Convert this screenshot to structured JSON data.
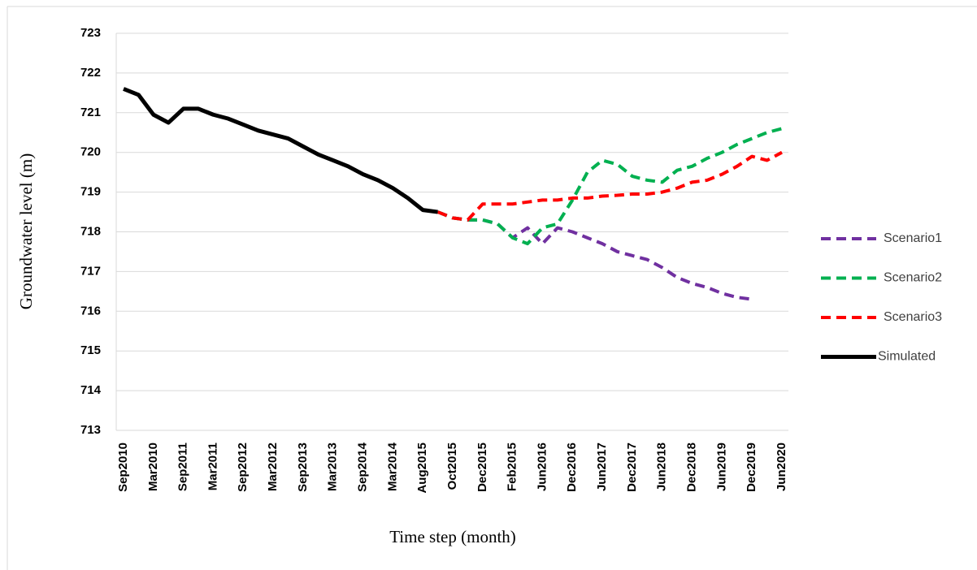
{
  "chart_data": {
    "type": "line",
    "x_label": "Time step (month)",
    "y_label": "Groundwater level (m)",
    "categories": [
      "Sep2010",
      null,
      "Mar2010",
      null,
      "Sep2011",
      null,
      "Mar2011",
      null,
      "Sep2012",
      null,
      "Mar2012",
      null,
      "Sep2013",
      null,
      "Mar2013",
      null,
      "Sep2014",
      null,
      "Mar2014",
      null,
      "Aug2015",
      null,
      "Oct2015",
      null,
      "Dec2015",
      null,
      "Feb2015",
      null,
      "Jun2016",
      null,
      "Dec2016",
      null,
      "Jun2017",
      null,
      "Dec2017",
      null,
      "Jun2018",
      null,
      "Dec2018",
      null,
      "Jun2019",
      null,
      "Dec2019",
      null,
      "Jun2020"
    ],
    "ylim": [
      713,
      723
    ],
    "yticks": [
      713,
      714,
      715,
      716,
      717,
      718,
      719,
      720,
      721,
      722,
      723
    ],
    "grid": true,
    "legend": "right",
    "series": [
      {
        "name": "Scenario1",
        "color": "#7030a0",
        "dashed": true,
        "values": [
          null,
          null,
          null,
          null,
          null,
          null,
          null,
          null,
          null,
          null,
          null,
          null,
          null,
          null,
          null,
          null,
          null,
          null,
          null,
          null,
          null,
          718.5,
          718.35,
          718.3,
          718.3,
          718.2,
          717.85,
          718.1,
          717.7,
          718.1,
          718.0,
          717.85,
          717.7,
          717.5,
          717.4,
          717.3,
          717.1,
          716.85,
          716.7,
          716.6,
          716.45,
          716.35,
          716.3,
          null,
          null
        ]
      },
      {
        "name": "Scenario2",
        "color": "#00b050",
        "dashed": true,
        "values": [
          null,
          null,
          null,
          null,
          null,
          null,
          null,
          null,
          null,
          null,
          null,
          null,
          null,
          null,
          null,
          null,
          null,
          null,
          null,
          null,
          null,
          718.5,
          718.35,
          718.3,
          718.3,
          718.2,
          717.85,
          717.7,
          718.1,
          718.2,
          718.8,
          719.5,
          719.8,
          719.7,
          719.4,
          719.3,
          719.25,
          719.55,
          719.65,
          719.85,
          720.0,
          720.2,
          720.35,
          720.5,
          720.6
        ]
      },
      {
        "name": "Scenario3",
        "color": "#ff0000",
        "dashed": true,
        "values": [
          null,
          null,
          null,
          null,
          null,
          null,
          null,
          null,
          null,
          null,
          null,
          null,
          null,
          null,
          null,
          null,
          null,
          null,
          null,
          null,
          null,
          718.5,
          718.35,
          718.3,
          718.7,
          718.7,
          718.7,
          718.75,
          718.8,
          718.8,
          718.85,
          718.85,
          718.9,
          718.92,
          718.95,
          718.95,
          719.0,
          719.1,
          719.25,
          719.3,
          719.45,
          719.65,
          719.9,
          719.8,
          720.0
        ]
      },
      {
        "name": "Simulated",
        "color": "#000000",
        "dashed": false,
        "values": [
          721.6,
          721.45,
          720.95,
          720.75,
          721.1,
          721.1,
          720.95,
          720.85,
          720.7,
          720.55,
          720.45,
          720.35,
          720.15,
          719.95,
          719.8,
          719.65,
          719.45,
          719.3,
          719.1,
          718.85,
          718.55,
          718.5,
          null,
          null,
          null,
          null,
          null,
          null,
          null,
          null,
          null,
          null,
          null,
          null,
          null,
          null,
          null,
          null,
          null,
          null,
          null,
          null,
          null,
          null,
          null
        ]
      }
    ]
  }
}
